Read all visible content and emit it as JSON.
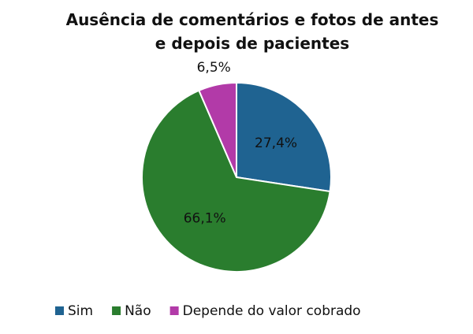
{
  "chart_data": {
    "type": "pie",
    "title": "Ausência de comentários e fotos de antes e depois de pacientes",
    "categories": [
      "Sim",
      "Não",
      "Depende do valor cobrado"
    ],
    "values": [
      27.4,
      66.1,
      6.5
    ],
    "value_labels": [
      "27,4%",
      "66,1%",
      "6,5%"
    ],
    "colors": [
      "#1f6391",
      "#2a7d2e",
      "#b23aa8"
    ],
    "legend": "bottom"
  }
}
